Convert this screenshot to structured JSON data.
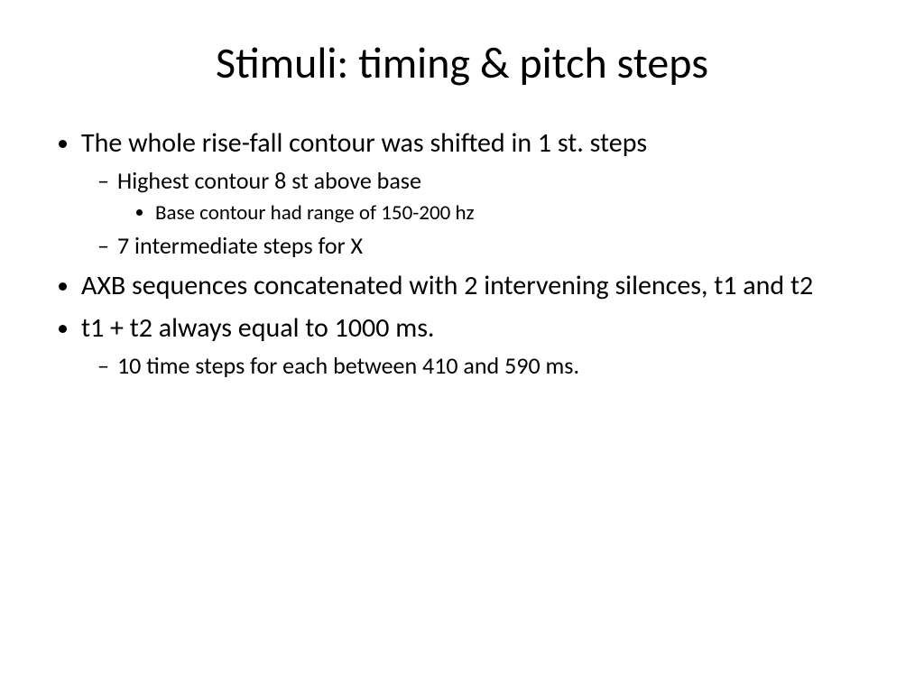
{
  "title": "Stimuli: timing & pitch steps",
  "bullets": {
    "b1": "The whole rise-fall contour was shifted in 1 st. steps",
    "b1a": "Highest contour 8 st above base",
    "b1a1": "Base contour had range of 150-200 hz",
    "b1b": "7 intermediate steps for X",
    "b2": "AXB sequences concatenated with 2 intervening silences, t1 and t2",
    "b3": "t1 + t2 always equal to 1000 ms.",
    "b3a": "10 time steps for each between 410 and 590 ms."
  },
  "style": {
    "background_color": "#ffffff",
    "text_color": "#000000",
    "title_fontsize": 48,
    "level1_fontsize": 30,
    "level2_fontsize": 26,
    "level3_fontsize": 23,
    "font_family": "Calibri"
  }
}
